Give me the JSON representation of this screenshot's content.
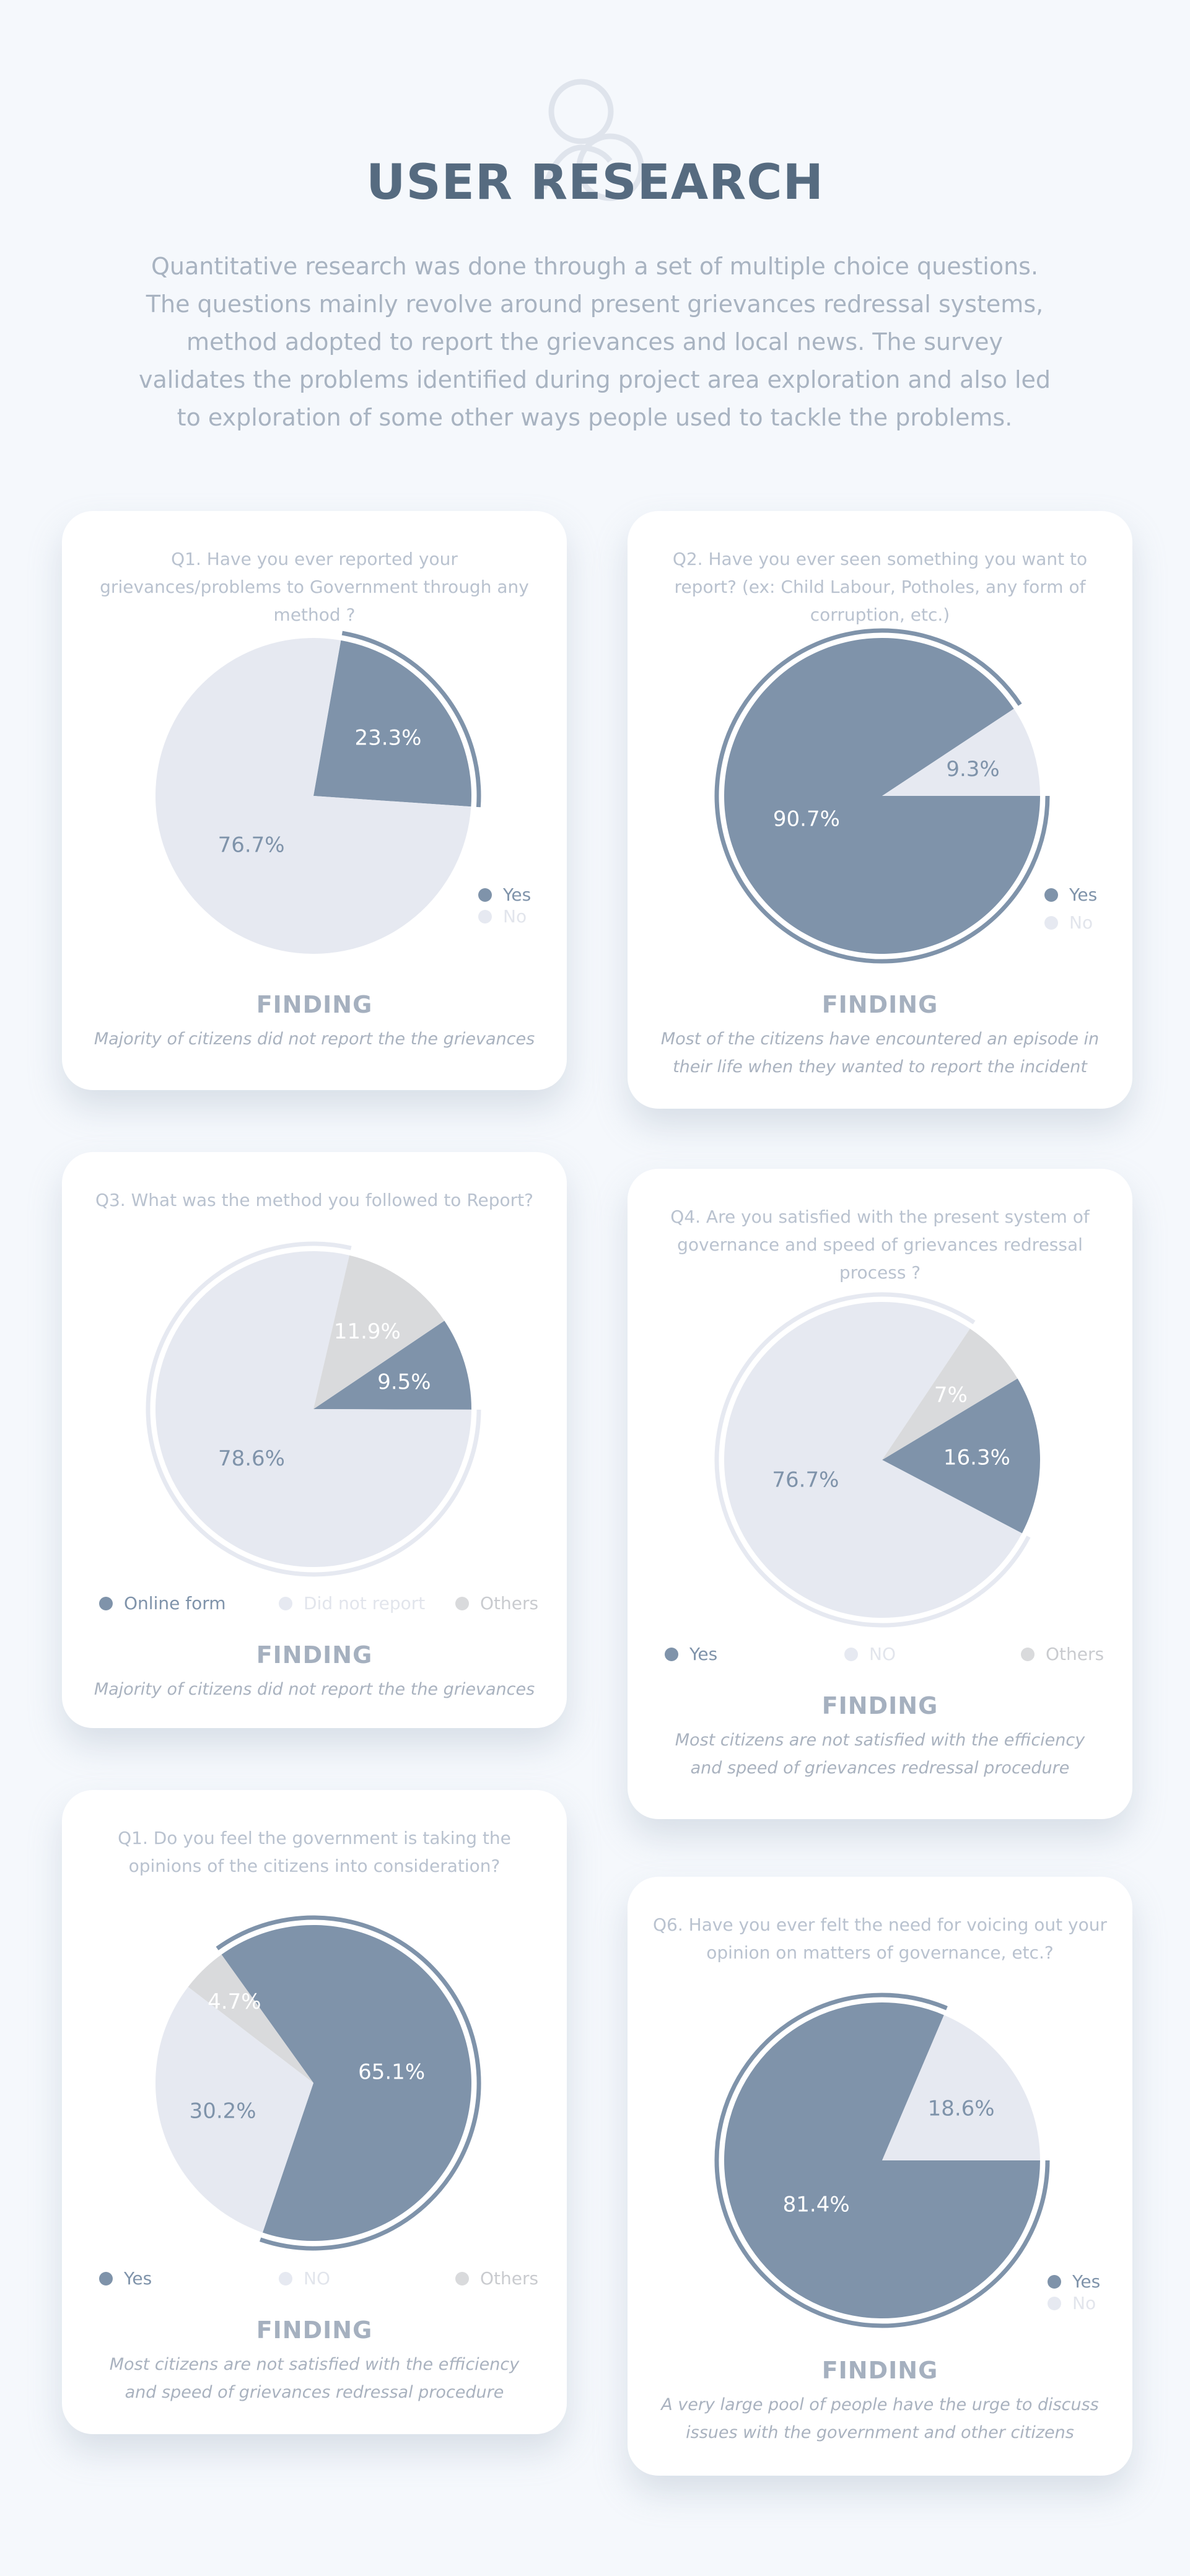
{
  "title": "USER RESEARCH",
  "intro": "Quantitative research was done through a set of multiple choice questions. The questions mainly revolve around present grievances redressal systems, method adopted to report the grievances and local news. The survey validates the problems identified during project area exploration and also led to exploration of some other ways people used to tackle the problems.",
  "colors": {
    "primary": "#7f93aa",
    "light": "#e6e9f1",
    "gray": "#d9dadc"
  },
  "finding_label": "FINDING",
  "cards": [
    {
      "question": "Q1. Have you ever reported your grievances/problems to Government through any method ?",
      "finding": "Majority of citizens did not report the the grievances",
      "legend": [
        "Yes",
        "No"
      ]
    },
    {
      "question": "Q2. Have you ever seen something you want to report? (ex: Child Labour, Potholes, any form of corruption, etc.)",
      "finding": "Most of the citizens have encountered an episode in their life when they wanted to report the incident",
      "legend": [
        "Yes",
        "No"
      ]
    },
    {
      "question": "Q3. What was the method you followed to Report?",
      "finding": "Majority of citizens did not report the the grievances",
      "legend": [
        "Online form",
        "Did not report",
        "Others"
      ]
    },
    {
      "question": "Q4. Are you satisfied with the present system of governance and speed of grievances redressal process ?",
      "finding": "Most citizens are not satisfied with the efficiency and speed of grievances redressal procedure",
      "legend": [
        "Yes",
        "NO",
        "Others"
      ]
    },
    {
      "question": "Q1. Do you feel the government is taking the opinions of the citizens into consideration?",
      "finding": "Most citizens are not satisfied with the efficiency and speed of grievances redressal procedure",
      "legend": [
        "Yes",
        "NO",
        "Others"
      ]
    },
    {
      "question": "Q6. Have you ever felt the need for voicing out your opinion on matters of governance, etc.?",
      "finding": "A very large pool of people have the urge to discuss issues with the government and other citizens",
      "legend": [
        "Yes",
        "No"
      ]
    }
  ],
  "chart_data": [
    {
      "type": "pie",
      "labels": [
        "Yes",
        "No"
      ],
      "values": [
        23.3,
        76.7
      ],
      "value_labels": [
        "23.3%",
        "76.7%"
      ],
      "colors": [
        "#7f93aa",
        "#e6e9f1"
      ],
      "legend_placement": "bottom-right"
    },
    {
      "type": "pie",
      "labels": [
        "Yes",
        "No"
      ],
      "values": [
        90.7,
        9.3
      ],
      "value_labels": [
        "90.7%",
        "9.3%"
      ],
      "colors": [
        "#7f93aa",
        "#e6e9f1"
      ],
      "legend_placement": "bottom-right"
    },
    {
      "type": "pie",
      "labels": [
        "Online form",
        "Did not report",
        "Others"
      ],
      "values": [
        9.5,
        78.6,
        11.9
      ],
      "value_labels": [
        "9.5%",
        "78.6%",
        "11.9%"
      ],
      "colors": [
        "#7f93aa",
        "#e6e9f1",
        "#d9dadc"
      ],
      "legend_placement": "bottom"
    },
    {
      "type": "pie",
      "labels": [
        "Yes",
        "NO",
        "Others"
      ],
      "values": [
        16.3,
        76.7,
        7
      ],
      "value_labels": [
        "16.3%",
        "76.7%",
        "7%"
      ],
      "colors": [
        "#7f93aa",
        "#e6e9f1",
        "#d9dadc"
      ],
      "legend_placement": "bottom"
    },
    {
      "type": "pie",
      "labels": [
        "Yes",
        "NO",
        "Others"
      ],
      "values": [
        65.1,
        30.2,
        4.7
      ],
      "value_labels": [
        "65.1%",
        "30.2%",
        "4.7%"
      ],
      "colors": [
        "#7f93aa",
        "#e6e9f1",
        "#d9dadc"
      ],
      "legend_placement": "bottom"
    },
    {
      "type": "pie",
      "labels": [
        "Yes",
        "No"
      ],
      "values": [
        81.4,
        18.6
      ],
      "value_labels": [
        "81.4%",
        "18.6%"
      ],
      "colors": [
        "#7f93aa",
        "#e6e9f1"
      ],
      "legend_placement": "bottom-right"
    }
  ]
}
